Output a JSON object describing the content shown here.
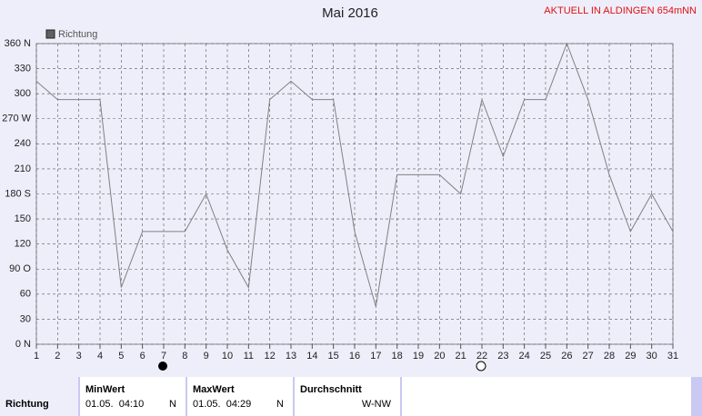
{
  "header": {
    "station": "AKTUELL IN ALDINGEN 654mNN"
  },
  "chart_data": {
    "type": "line",
    "title": "Mai 2016",
    "x": [
      1,
      2,
      3,
      4,
      5,
      6,
      7,
      8,
      9,
      10,
      11,
      12,
      13,
      14,
      15,
      16,
      17,
      18,
      19,
      20,
      21,
      22,
      23,
      24,
      25,
      26,
      27,
      28,
      29,
      30,
      31
    ],
    "series": [
      {
        "name": "Richtung",
        "color": "#808080",
        "values": [
          315,
          293,
          293,
          293,
          68,
          135,
          135,
          135,
          180,
          113,
          68,
          293,
          315,
          293,
          293,
          135,
          45,
          203,
          203,
          203,
          180,
          293,
          225,
          293,
          293,
          360,
          293,
          203,
          135,
          180,
          135
        ]
      }
    ],
    "xlim": [
      1,
      31
    ],
    "xticks": [
      1,
      2,
      3,
      4,
      5,
      6,
      7,
      8,
      9,
      10,
      11,
      12,
      13,
      14,
      15,
      16,
      17,
      18,
      19,
      20,
      21,
      22,
      23,
      24,
      25,
      26,
      27,
      28,
      29,
      30,
      31
    ],
    "ylim": [
      0,
      360
    ],
    "yticks": [
      {
        "value": 0,
        "label": "0 N"
      },
      30,
      60,
      {
        "value": 90,
        "label": "90 O"
      },
      120,
      150,
      {
        "value": 180,
        "label": "180 S"
      },
      210,
      240,
      {
        "value": 270,
        "label": "270 W"
      },
      300,
      330,
      {
        "value": 360,
        "label": "360 N"
      }
    ],
    "grid": true
  },
  "summary": {
    "row_label": "Richtung",
    "columns": [
      {
        "title": "MinWert",
        "time": "01.05.  04:10",
        "dir": "N"
      },
      {
        "title": "MaxWert",
        "time": "01.05.  04:29",
        "dir": "N"
      },
      {
        "title": "Durchschnitt",
        "dir": "W-NW"
      }
    ]
  }
}
